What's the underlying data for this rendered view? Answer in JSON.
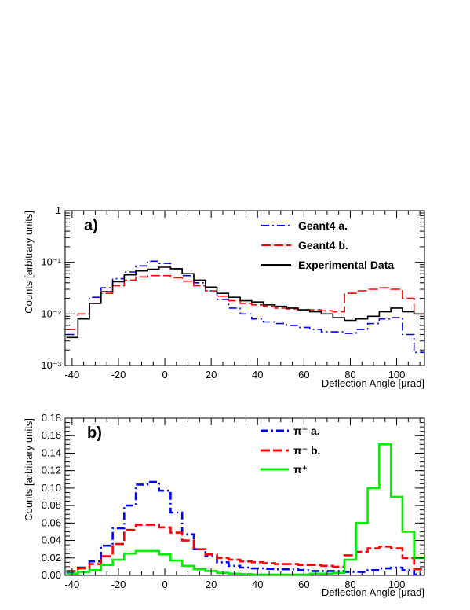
{
  "chart_data": [
    {
      "panel_label": "a)",
      "type": "line",
      "step": true,
      "xlabel": "Deflection Angle [μrad]",
      "ylabel": "Counts [arbitrary units]",
      "xlim": [
        -43,
        112
      ],
      "ylim": [
        0.001,
        1
      ],
      "yscale": "log",
      "x_ticks": [
        -40,
        -20,
        0,
        20,
        40,
        60,
        80,
        100
      ],
      "y_ticks": [
        {
          "value": 0.001,
          "label": "10⁻³"
        },
        {
          "value": 0.01,
          "label": "10⁻²"
        },
        {
          "value": 0.1,
          "label": "10⁻¹"
        },
        {
          "value": 1,
          "label": "1"
        }
      ],
      "legend_position": "top-right",
      "series": [
        {
          "name": "Geant4 a.",
          "color": "#0000ff",
          "dash": "dashdot",
          "x": [
            -40,
            -35,
            -30,
            -25,
            -20,
            -15,
            -10,
            -5,
            0,
            5,
            10,
            15,
            20,
            25,
            30,
            35,
            40,
            45,
            50,
            55,
            60,
            65,
            70,
            75,
            80,
            85,
            90,
            95,
            100,
            105,
            110
          ],
          "values": [
            0.004,
            0.01,
            0.021,
            0.032,
            0.048,
            0.065,
            0.085,
            0.105,
            0.095,
            0.075,
            0.055,
            0.04,
            0.028,
            0.019,
            0.013,
            0.01,
            0.008,
            0.007,
            0.0065,
            0.006,
            0.0055,
            0.005,
            0.0045,
            0.0045,
            0.0042,
            0.005,
            0.0065,
            0.008,
            0.0085,
            0.004,
            0.0018
          ]
        },
        {
          "name": "Geant4 b.",
          "color": "#ff0000",
          "dash": "dash",
          "x": [
            -40,
            -35,
            -30,
            -25,
            -20,
            -15,
            -10,
            -5,
            0,
            5,
            10,
            15,
            20,
            25,
            30,
            35,
            40,
            45,
            50,
            55,
            60,
            65,
            70,
            75,
            80,
            85,
            90,
            95,
            100,
            105,
            110
          ],
          "values": [
            0.005,
            0.01,
            0.016,
            0.025,
            0.035,
            0.045,
            0.052,
            0.055,
            0.055,
            0.05,
            0.043,
            0.035,
            0.028,
            0.022,
            0.018,
            0.016,
            0.015,
            0.014,
            0.013,
            0.0125,
            0.012,
            0.012,
            0.0115,
            0.011,
            0.025,
            0.028,
            0.03,
            0.032,
            0.03,
            0.02,
            0.01
          ]
        },
        {
          "name": "Experimental Data",
          "color": "#000000",
          "dash": "solid",
          "x": [
            -40,
            -35,
            -30,
            -25,
            -20,
            -15,
            -10,
            -5,
            0,
            5,
            10,
            15,
            20,
            25,
            30,
            35,
            40,
            45,
            50,
            55,
            60,
            65,
            70,
            75,
            80,
            85,
            90,
            95,
            100,
            105,
            110
          ],
          "values": [
            0.0035,
            0.008,
            0.016,
            0.027,
            0.042,
            0.057,
            0.068,
            0.073,
            0.08,
            0.075,
            0.06,
            0.045,
            0.033,
            0.025,
            0.021,
            0.018,
            0.017,
            0.015,
            0.014,
            0.013,
            0.012,
            0.011,
            0.01,
            0.0085,
            0.0075,
            0.008,
            0.009,
            0.011,
            0.013,
            0.011,
            0.01
          ]
        }
      ]
    },
    {
      "panel_label": "b)",
      "type": "line",
      "step": true,
      "xlabel": "Deflection Angle [μrad]",
      "ylabel": "Counts [arbitrary units]",
      "xlim": [
        -43,
        112
      ],
      "ylim": [
        0,
        0.18
      ],
      "x_ticks": [
        -40,
        -20,
        0,
        20,
        40,
        60,
        80,
        100
      ],
      "y_ticks": [
        {
          "value": 0,
          "label": "0.00"
        },
        {
          "value": 0.02,
          "label": "0.02"
        },
        {
          "value": 0.04,
          "label": "0.04"
        },
        {
          "value": 0.06,
          "label": "0.06"
        },
        {
          "value": 0.08,
          "label": "0.08"
        },
        {
          "value": 0.1,
          "label": "0.10"
        },
        {
          "value": 0.12,
          "label": "0.12"
        },
        {
          "value": 0.14,
          "label": "0.14"
        },
        {
          "value": 0.16,
          "label": "0.16"
        },
        {
          "value": 0.18,
          "label": "0.18"
        }
      ],
      "legend_position": "top-center",
      "series": [
        {
          "name": "π⁻ a.",
          "color": "#0000ff",
          "dash": "dashdot",
          "x": [
            -40,
            -35,
            -30,
            -25,
            -20,
            -15,
            -10,
            -5,
            0,
            5,
            10,
            15,
            20,
            25,
            30,
            35,
            40,
            45,
            50,
            55,
            60,
            65,
            70,
            75,
            80,
            85,
            90,
            95,
            100,
            105,
            110
          ],
          "values": [
            0.004,
            0.009,
            0.016,
            0.034,
            0.054,
            0.08,
            0.104,
            0.107,
            0.097,
            0.072,
            0.047,
            0.03,
            0.022,
            0.015,
            0.011,
            0.009,
            0.008,
            0.0075,
            0.007,
            0.007,
            0.006,
            0.005,
            0.005,
            0.005,
            0.004,
            0.004,
            0.006,
            0.008,
            0.009,
            0.006,
            0.001
          ]
        },
        {
          "name": "π⁻ b.",
          "color": "#ff0000",
          "dash": "dash",
          "x": [
            -40,
            -35,
            -30,
            -25,
            -20,
            -15,
            -10,
            -5,
            0,
            5,
            10,
            15,
            20,
            25,
            30,
            35,
            40,
            45,
            50,
            55,
            60,
            65,
            70,
            75,
            80,
            85,
            90,
            95,
            100,
            105,
            110
          ],
          "values": [
            0.005,
            0.008,
            0.013,
            0.022,
            0.036,
            0.052,
            0.058,
            0.058,
            0.055,
            0.049,
            0.04,
            0.03,
            0.024,
            0.02,
            0.018,
            0.016,
            0.015,
            0.014,
            0.013,
            0.013,
            0.012,
            0.012,
            0.011,
            0.01,
            0.023,
            0.027,
            0.031,
            0.033,
            0.031,
            0.02,
            0.007
          ]
        },
        {
          "name": "π⁺",
          "color": "#00ee00",
          "dash": "solid",
          "x": [
            -40,
            -35,
            -30,
            -25,
            -20,
            -15,
            -10,
            -5,
            0,
            5,
            10,
            15,
            20,
            25,
            30,
            35,
            40,
            45,
            50,
            55,
            60,
            65,
            70,
            75,
            80,
            85,
            90,
            95,
            100,
            105,
            110
          ],
          "values": [
            0.002,
            0.004,
            0.006,
            0.012,
            0.018,
            0.025,
            0.028,
            0.028,
            0.024,
            0.017,
            0.011,
            0.007,
            0.005,
            0.003,
            0.002,
            0.0015,
            0.001,
            0.001,
            0.001,
            0.001,
            0.001,
            0.002,
            0.002,
            0.003,
            0.018,
            0.06,
            0.1,
            0.15,
            0.09,
            0.05,
            0.02
          ]
        }
      ]
    }
  ]
}
